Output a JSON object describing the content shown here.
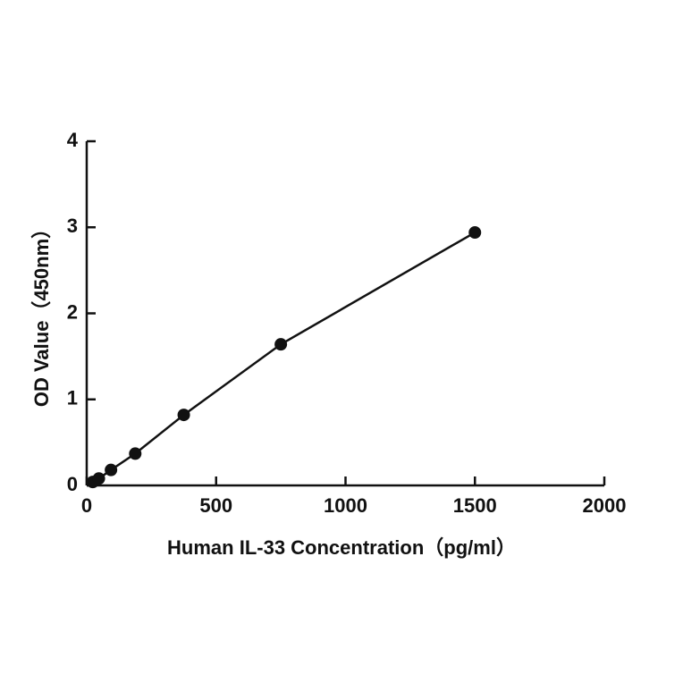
{
  "chart_data": {
    "type": "scatter",
    "x_label": "Human IL-33   Concentration（pg/ml）",
    "y_label": "OD Value（450nm）",
    "x": [
      23.44,
      46.88,
      93.75,
      187.5,
      375,
      750,
      1500
    ],
    "series": [
      {
        "name": "Human IL-33",
        "color": "#111111",
        "values": [
          0.04,
          0.08,
          0.18,
          0.37,
          0.82,
          1.64,
          2.94
        ]
      }
    ],
    "xlim": [
      0,
      2000
    ],
    "xticks": [
      0,
      500,
      1000,
      1500,
      2000
    ],
    "ylim": [
      0,
      4
    ],
    "yticks": [
      0,
      1,
      2,
      3,
      4
    ]
  }
}
